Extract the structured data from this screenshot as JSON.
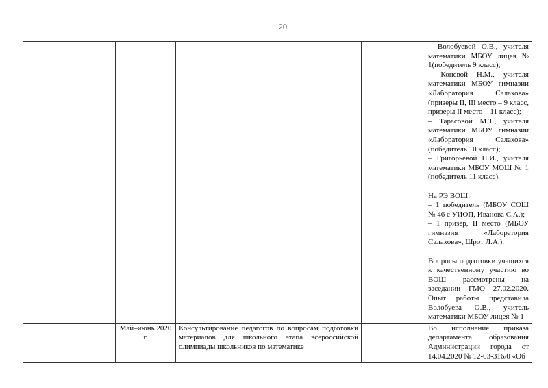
{
  "page_number": "20",
  "rows": [
    {
      "period": "",
      "activity": "",
      "result_paragraphs": [
        [
          "– Волобуевой О.В., учителя математики МБОУ лицея № 1(победитель 9 класс);",
          "– Коневой Н.М., учителя математики МБОУ гимназии «Лаборатория Салахова» (призеры II, III место – 9 класс, призеры II место – 11 класс);",
          "– Тарасовой М.Т., учителя математики МБОУ гимназии «Лаборатория Салахова» (победитель 10 класс);",
          "– Григорьевой Н.И., учителя математики МБОУ МОШ № 1 (победитель 11 класс)."
        ],
        [
          "На РЭ ВОШ:",
          "– 1 победитель (МБОУ СОШ № 46 с УИОП, Иванова С.А.);",
          "– 1 призер, II место (МБОУ гимназия «Лаборатория Салахова», Шрот Л.А.)."
        ],
        [
          "Вопросы подготовки учащихся к качественному участию во ВОШ рассмотрены на заседании ГМО 27.02.2020. Опыт работы представила Волобуева О.В., учитель математики МБОУ лицея № 1"
        ]
      ]
    },
    {
      "period": "Май–июнь 2020 г.",
      "activity": "Консультирование педагогов по вопросам подготовки материалов для школьного этапа всероссийской олимпиады школьников по математике",
      "result": "Во исполнение приказа департамента образования Администрации города от 14.04.2020 № 12-03-316/0 «Об"
    }
  ]
}
